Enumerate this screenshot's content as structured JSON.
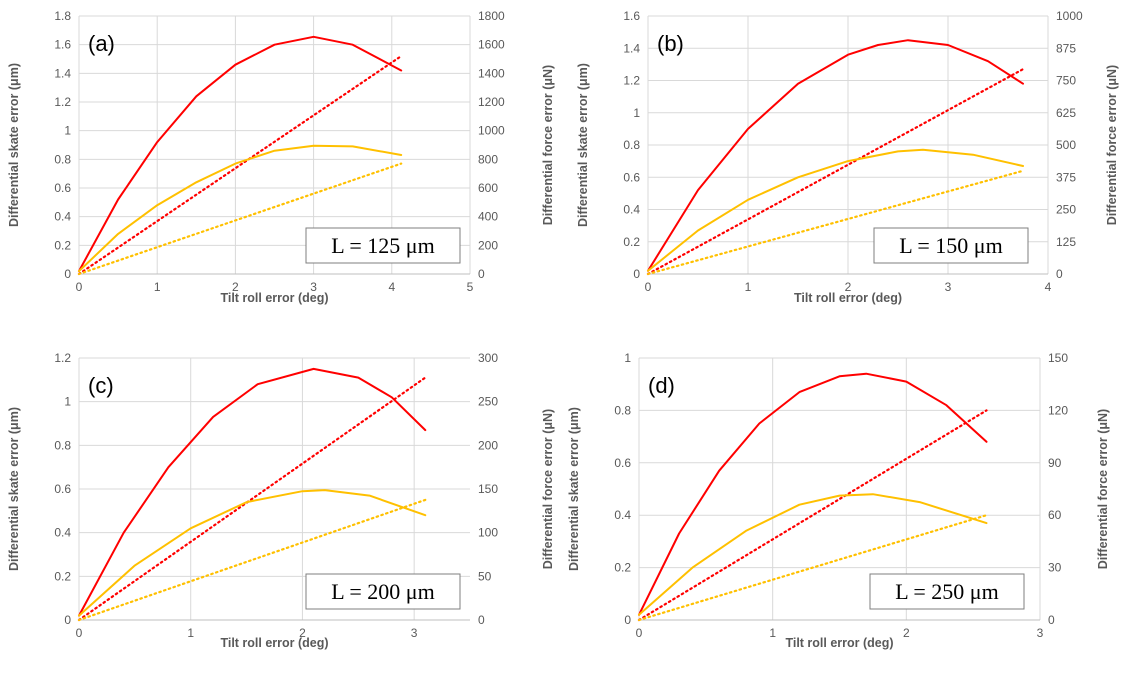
{
  "chart_data": [
    {
      "type": "line",
      "panel_label": "(a)",
      "length_label": "L = 125 μm",
      "xlabel": "Tilt roll error (deg)",
      "ylabel": "Differential skate error (μm)",
      "y2label": "Differential force error (μN)",
      "xlim": [
        0,
        5
      ],
      "ylim": [
        0,
        1.8
      ],
      "y2lim": [
        0,
        1800
      ],
      "xticks": [
        "0",
        "1",
        "2",
        "3",
        "4",
        "5"
      ],
      "yticks": [
        "0",
        "0.2",
        "0.4",
        "0.6",
        "0.8",
        "1",
        "1.2",
        "1.4",
        "1.6",
        "1.8"
      ],
      "y2ticks": [
        "0",
        "200",
        "400",
        "600",
        "800",
        "1000",
        "1200",
        "1400",
        "1600",
        "1800"
      ],
      "grid": true,
      "series": [
        {
          "color": "#ff0000",
          "style": "solid",
          "points": [
            [
              0,
              0.02
            ],
            [
              0.5,
              0.52
            ],
            [
              1,
              0.92
            ],
            [
              1.5,
              1.24
            ],
            [
              2,
              1.46
            ],
            [
              2.5,
              1.6
            ],
            [
              3,
              1.655
            ],
            [
              3.5,
              1.6
            ],
            [
              4.12,
              1.42
            ]
          ]
        },
        {
          "color": "#ff0000",
          "style": "dotted",
          "points": [
            [
              0,
              0
            ],
            [
              4.12,
              1.52
            ]
          ]
        },
        {
          "color": "#ffc000",
          "style": "solid",
          "points": [
            [
              0,
              0.02
            ],
            [
              0.5,
              0.28
            ],
            [
              1,
              0.48
            ],
            [
              1.5,
              0.64
            ],
            [
              2,
              0.77
            ],
            [
              2.5,
              0.86
            ],
            [
              3,
              0.895
            ],
            [
              3.5,
              0.89
            ],
            [
              4.12,
              0.83
            ]
          ]
        },
        {
          "color": "#ffc000",
          "style": "dotted",
          "points": [
            [
              0,
              0
            ],
            [
              4.12,
              0.77
            ]
          ]
        }
      ]
    },
    {
      "type": "line",
      "panel_label": "(b)",
      "length_label": "L = 150 μm",
      "xlabel": "Tilt roll error (deg)",
      "ylabel": "Differential skate error (μm)",
      "y2label": "Differential force error (μN)",
      "xlim": [
        0,
        4
      ],
      "ylim": [
        0,
        1.6
      ],
      "y2lim": [
        0,
        1000
      ],
      "xticks": [
        "0",
        "1",
        "2",
        "3",
        "4"
      ],
      "yticks": [
        "0",
        "0.2",
        "0.4",
        "0.6",
        "0.8",
        "1",
        "1.2",
        "1.4",
        "1.6"
      ],
      "y2ticks": [
        "0",
        "125",
        "250",
        "375",
        "500",
        "625",
        "750",
        "875",
        "1000"
      ],
      "grid": true,
      "series": [
        {
          "color": "#ff0000",
          "style": "solid",
          "points": [
            [
              0,
              0.02
            ],
            [
              0.5,
              0.52
            ],
            [
              1,
              0.9
            ],
            [
              1.5,
              1.18
            ],
            [
              2,
              1.36
            ],
            [
              2.3,
              1.42
            ],
            [
              2.6,
              1.45
            ],
            [
              3,
              1.42
            ],
            [
              3.4,
              1.32
            ],
            [
              3.75,
              1.18
            ]
          ]
        },
        {
          "color": "#ff0000",
          "style": "dotted",
          "points": [
            [
              0,
              0
            ],
            [
              3.75,
              1.27
            ]
          ]
        },
        {
          "color": "#ffc000",
          "style": "solid",
          "points": [
            [
              0,
              0.02
            ],
            [
              0.5,
              0.27
            ],
            [
              1,
              0.46
            ],
            [
              1.5,
              0.6
            ],
            [
              2,
              0.7
            ],
            [
              2.5,
              0.76
            ],
            [
              2.75,
              0.77
            ],
            [
              3.25,
              0.74
            ],
            [
              3.75,
              0.67
            ]
          ]
        },
        {
          "color": "#ffc000",
          "style": "dotted",
          "points": [
            [
              0,
              0
            ],
            [
              3.75,
              0.64
            ]
          ]
        }
      ]
    },
    {
      "type": "line",
      "panel_label": "(c)",
      "length_label": "L = 200 μm",
      "xlabel": "Tilt roll error (deg)",
      "ylabel": "Differential skate error (μm)",
      "y2label": "Differential force error (μN)",
      "xlim": [
        0,
        3.5
      ],
      "ylim": [
        0,
        1.2
      ],
      "y2lim": [
        0,
        300
      ],
      "xticks": [
        "0",
        "1",
        "2",
        "3"
      ],
      "yticks": [
        "0",
        "0.2",
        "0.4",
        "0.6",
        "0.8",
        "1",
        "1.2"
      ],
      "y2ticks": [
        "0",
        "50",
        "100",
        "150",
        "200",
        "250",
        "300"
      ],
      "grid": true,
      "series": [
        {
          "color": "#ff0000",
          "style": "solid",
          "points": [
            [
              0,
              0.02
            ],
            [
              0.4,
              0.4
            ],
            [
              0.8,
              0.7
            ],
            [
              1.2,
              0.93
            ],
            [
              1.6,
              1.08
            ],
            [
              2.1,
              1.15
            ],
            [
              2.5,
              1.11
            ],
            [
              2.8,
              1.02
            ],
            [
              3.1,
              0.87
            ]
          ]
        },
        {
          "color": "#ff0000",
          "style": "dotted",
          "points": [
            [
              0,
              0
            ],
            [
              3.1,
              1.11
            ]
          ]
        },
        {
          "color": "#ffc000",
          "style": "solid",
          "points": [
            [
              0,
              0.02
            ],
            [
              0.5,
              0.25
            ],
            [
              1,
              0.42
            ],
            [
              1.5,
              0.54
            ],
            [
              2,
              0.59
            ],
            [
              2.2,
              0.595
            ],
            [
              2.6,
              0.57
            ],
            [
              3.1,
              0.48
            ]
          ]
        },
        {
          "color": "#ffc000",
          "style": "dotted",
          "points": [
            [
              0,
              0
            ],
            [
              3.1,
              0.55
            ]
          ]
        }
      ]
    },
    {
      "type": "line",
      "panel_label": "(d)",
      "length_label": "L = 250 μm",
      "xlabel": "Tilt roll error (deg)",
      "ylabel": "Differential skate error (μm)",
      "y2label": "Differential force error (μN)",
      "xlim": [
        0,
        3
      ],
      "ylim": [
        0,
        1
      ],
      "y2lim": [
        0,
        150
      ],
      "xticks": [
        "0",
        "1",
        "2",
        "3"
      ],
      "yticks": [
        "0",
        "0.2",
        "0.4",
        "0.6",
        "0.8",
        "1"
      ],
      "y2ticks": [
        "0",
        "30",
        "60",
        "90",
        "120",
        "150"
      ],
      "grid": true,
      "series": [
        {
          "color": "#ff0000",
          "style": "solid",
          "points": [
            [
              0,
              0.02
            ],
            [
              0.3,
              0.33
            ],
            [
              0.6,
              0.57
            ],
            [
              0.9,
              0.75
            ],
            [
              1.2,
              0.87
            ],
            [
              1.5,
              0.93
            ],
            [
              1.7,
              0.94
            ],
            [
              2,
              0.91
            ],
            [
              2.3,
              0.82
            ],
            [
              2.6,
              0.68
            ]
          ]
        },
        {
          "color": "#ff0000",
          "style": "dotted",
          "points": [
            [
              0,
              0
            ],
            [
              2.6,
              0.8
            ]
          ]
        },
        {
          "color": "#ffc000",
          "style": "solid",
          "points": [
            [
              0,
              0.02
            ],
            [
              0.4,
              0.2
            ],
            [
              0.8,
              0.34
            ],
            [
              1.2,
              0.44
            ],
            [
              1.5,
              0.475
            ],
            [
              1.75,
              0.48
            ],
            [
              2.1,
              0.45
            ],
            [
              2.6,
              0.37
            ]
          ]
        },
        {
          "color": "#ffc000",
          "style": "dotted",
          "points": [
            [
              0,
              0
            ],
            [
              2.6,
              0.4
            ]
          ]
        }
      ]
    }
  ]
}
